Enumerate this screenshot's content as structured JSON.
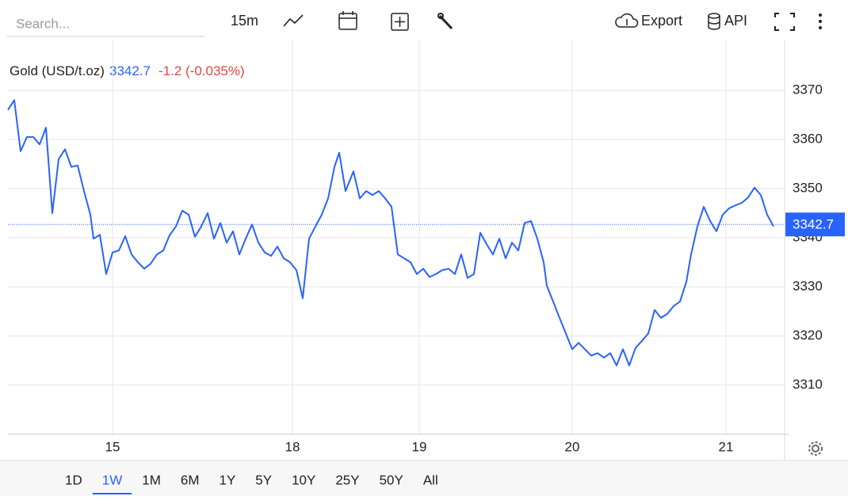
{
  "toolbar": {
    "search": "Search...",
    "interval": "15m",
    "export": "Export",
    "api": "API"
  },
  "ranges": [
    "1D",
    "1W",
    "1M",
    "6M",
    "1Y",
    "5Y",
    "10Y",
    "25Y",
    "50Y",
    "All"
  ],
  "active_range": 1,
  "legend": {
    "name": "Gold (USD/t.oz)",
    "change": "-1.2 (-0.035%)",
    "change_color": "#e0453e"
  },
  "chart_data": {
    "type": "line",
    "grid": true,
    "last_value": 3342.7,
    "x": [
      0,
      8,
      16,
      24,
      32,
      40,
      48,
      56,
      64,
      72,
      80,
      88,
      96,
      104,
      108,
      116,
      124,
      132,
      140,
      148,
      156,
      164,
      172,
      180,
      188,
      196,
      204,
      212,
      220,
      228,
      236,
      244,
      252,
      260,
      268,
      276,
      284,
      292,
      300,
      308,
      316,
      324,
      332,
      340,
      348,
      356,
      364,
      372,
      380,
      388,
      396,
      404,
      412,
      418,
      426,
      436,
      444,
      452,
      460,
      468,
      476,
      484,
      492,
      500,
      508,
      516,
      524,
      532,
      540,
      548,
      556,
      564,
      572,
      580,
      588,
      596,
      604,
      612,
      620,
      628,
      636,
      644,
      652,
      660,
      668,
      676,
      680,
      688,
      696,
      704,
      712,
      720,
      728,
      736,
      744,
      752,
      760,
      768,
      776,
      784,
      792,
      800,
      808,
      816,
      824,
      832,
      840,
      848,
      856,
      862,
      870,
      878,
      886,
      894,
      902,
      910,
      918,
      926,
      934,
      942,
      950,
      958,
      966
    ],
    "series": [
      {
        "name": "Gold (USD/t.oz)",
        "color": "#2962ff",
        "values": [
          3366,
          3368,
          3357.6,
          3360.5,
          3360.5,
          3359,
          3362.4,
          3345,
          3356,
          3358,
          3354.4,
          3354.7,
          3349.5,
          3344.7,
          3339.8,
          3340.6,
          3332.6,
          3337,
          3337.4,
          3340.3,
          3336.6,
          3335,
          3333.7,
          3334.7,
          3336.6,
          3337.4,
          3340.5,
          3342.3,
          3345.5,
          3344.7,
          3340.2,
          3342.3,
          3345,
          3339.8,
          3343,
          3339,
          3341.3,
          3336.6,
          3339.8,
          3342.7,
          3339,
          3337,
          3336.3,
          3338.2,
          3335.8,
          3335,
          3333.4,
          3327.7,
          3339.8,
          3342.3,
          3344.7,
          3348,
          3354.4,
          3357.3,
          3349.5,
          3353.5,
          3348,
          3349.5,
          3348.7,
          3349.5,
          3348,
          3346.3,
          3336.6,
          3335.8,
          3335,
          3332.6,
          3333.7,
          3332,
          3332.6,
          3333.4,
          3333.7,
          3332.6,
          3336.6,
          3331.8,
          3332.6,
          3341,
          3338.7,
          3336.6,
          3339.8,
          3335.8,
          3339,
          3337.4,
          3343,
          3343.4,
          3339.8,
          3335,
          3330.2,
          3327,
          3323.7,
          3320.5,
          3317.3,
          3318.6,
          3317.3,
          3316,
          3316.5,
          3315.6,
          3316.5,
          3314,
          3317.3,
          3314,
          3317.6,
          3319,
          3320.5,
          3325.3,
          3323.7,
          3324.5,
          3326.1,
          3327,
          3331,
          3336.6,
          3342.3,
          3346.3,
          3343.4,
          3341.3,
          3344.7,
          3346,
          3346.6,
          3347.1,
          3348.2,
          3350.2,
          3348.7,
          3344.7,
          3342.3
        ]
      }
    ],
    "xlim": [
      0,
      980
    ],
    "xticks": [
      {
        "value": 132,
        "label": "15"
      },
      {
        "value": 359,
        "label": "18"
      },
      {
        "value": 519,
        "label": "19"
      },
      {
        "value": 712,
        "label": "20"
      },
      {
        "value": 906,
        "label": "21"
      }
    ],
    "ylim": [
      3300,
      3380
    ],
    "yticks": [
      3310,
      3320,
      3330,
      3340,
      3350,
      3360,
      3370
    ]
  }
}
